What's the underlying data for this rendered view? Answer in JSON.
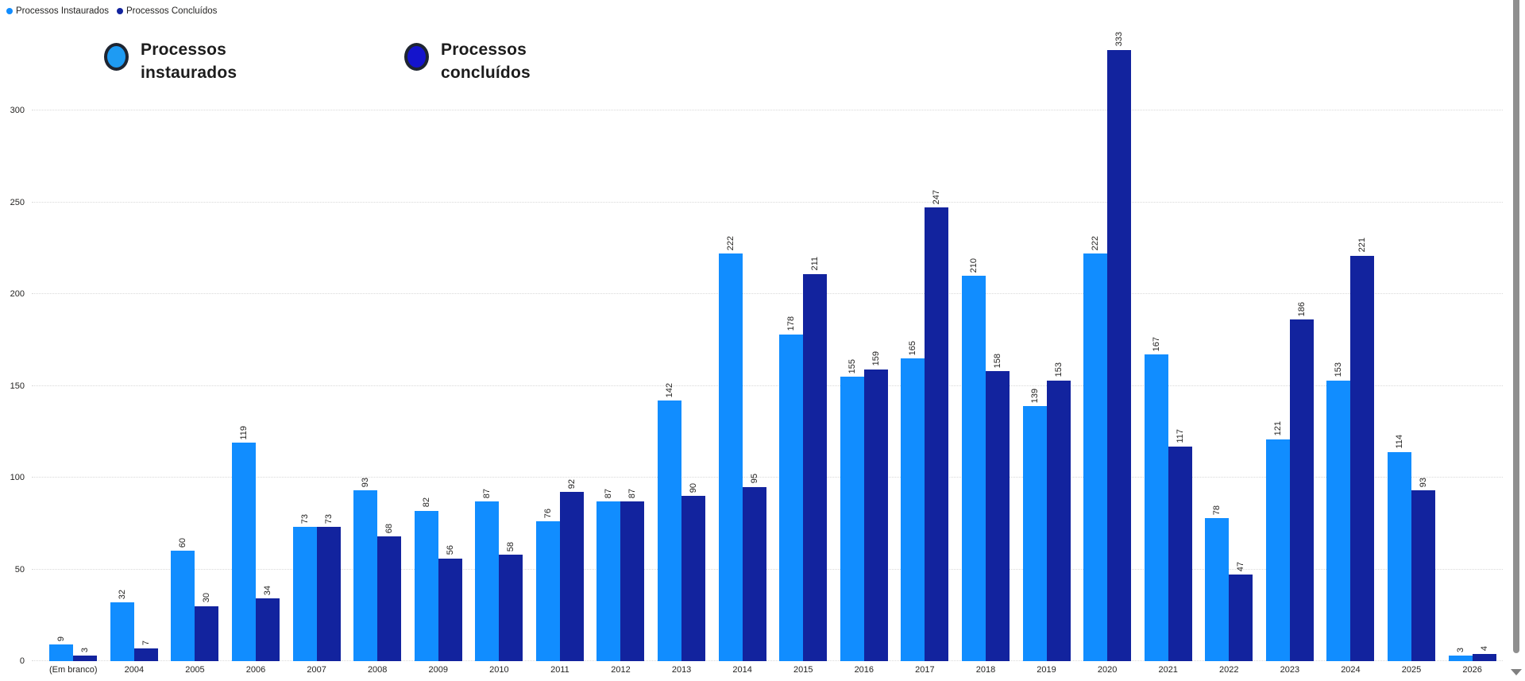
{
  "legend_small": {
    "items": [
      {
        "label": "Processos Instaurados",
        "color": "#118DFF"
      },
      {
        "label": "Processos Concluídos",
        "color": "#12239E"
      }
    ]
  },
  "legend_big": {
    "items": [
      {
        "line1": "Processos",
        "line2": "instaurados",
        "fill": "#1E9BF3"
      },
      {
        "line1": "Processos",
        "line2": "concluídos",
        "fill": "#1414CC"
      }
    ]
  },
  "chart_data": {
    "type": "bar",
    "title": "",
    "xlabel": "",
    "ylabel": "",
    "categories": [
      "(Em branco)",
      "2004",
      "2005",
      "2006",
      "2007",
      "2008",
      "2009",
      "2010",
      "2011",
      "2012",
      "2013",
      "2014",
      "2015",
      "2016",
      "2017",
      "2018",
      "2019",
      "2020",
      "2021",
      "2022",
      "2023",
      "2024",
      "2025",
      "2026"
    ],
    "series": [
      {
        "name": "Processos Instaurados",
        "color": "#118DFF",
        "values": [
          9,
          32,
          60,
          119,
          73,
          93,
          82,
          87,
          76,
          87,
          142,
          222,
          178,
          155,
          165,
          210,
          139,
          222,
          167,
          78,
          121,
          153,
          114,
          3
        ]
      },
      {
        "name": "Processos Concluídos",
        "color": "#12239E",
        "values": [
          3,
          7,
          30,
          34,
          73,
          68,
          56,
          58,
          92,
          87,
          90,
          95,
          211,
          159,
          247,
          158,
          153,
          333,
          117,
          47,
          186,
          221,
          93,
          4
        ]
      }
    ],
    "ylim": [
      0,
      350
    ],
    "yticks": [
      0,
      50,
      100,
      150,
      200,
      250,
      300
    ],
    "grid": "horizontal-dotted",
    "legend_position": "top-left",
    "data_labels": "rotated-vertical"
  }
}
